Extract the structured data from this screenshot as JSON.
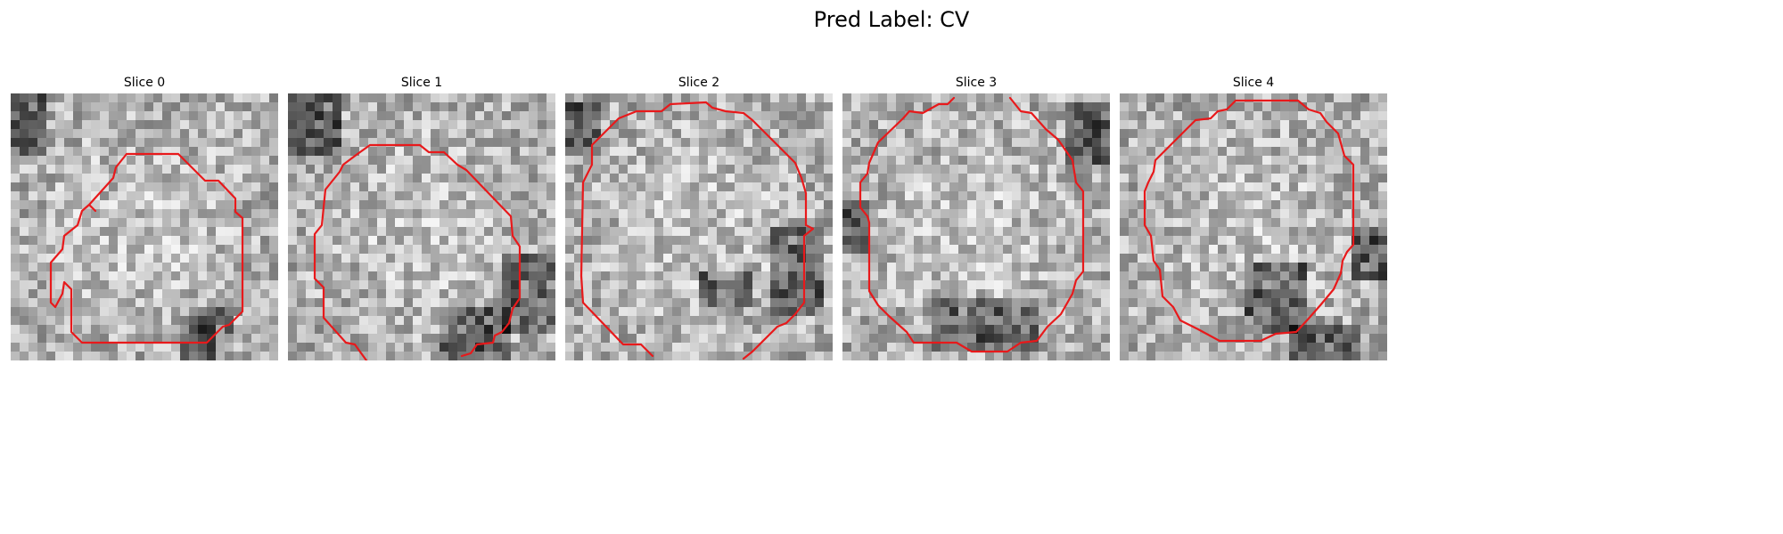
{
  "figure": {
    "title": "Pred Label: CV"
  },
  "slices": [
    {
      "label": "Slice 0"
    },
    {
      "label": "Slice 1"
    },
    {
      "label": "Slice 2"
    },
    {
      "label": "Slice 3"
    },
    {
      "label": "Slice 4"
    }
  ],
  "colors": {
    "contour": "#e8191b",
    "background": "#ffffff"
  }
}
